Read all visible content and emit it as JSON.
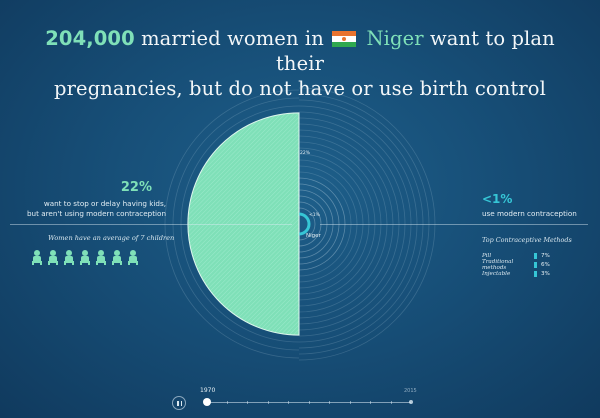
{
  "headline": {
    "number": "204,000",
    "text_before_flag": " married women in ",
    "country": "Niger",
    "text_after_country": " want to plan their",
    "line2": "pregnancies, but do not have or use birth control"
  },
  "left": {
    "percent": "22%",
    "description_line1": "want to stop or delay having kids,",
    "description_line2": "but aren't using modern contraception",
    "avg_children_note": "Women have an average of 7 children",
    "children_count": 7
  },
  "right": {
    "percent": "<1%",
    "description": "use modern contraception",
    "methods_title": "Top Contraceptive Methods",
    "methods": [
      {
        "name": "Pill",
        "value": "7%"
      },
      {
        "name": "Traditional methods",
        "value": "6%"
      },
      {
        "name": "Injectable",
        "value": "3%"
      }
    ]
  },
  "viz": {
    "top_label": "22%",
    "small_label": "<1%",
    "country_label": "Niger",
    "unmet_need_fraction": 0.22,
    "modern_use_fraction": 0.01,
    "colors": {
      "unmet": "#7fe0b8",
      "modern": "#36c6d6",
      "rings": "#cfe3ee"
    }
  },
  "timeline": {
    "start_year": "1970",
    "end_year": "2015",
    "icon_pause": "pause-icon"
  }
}
